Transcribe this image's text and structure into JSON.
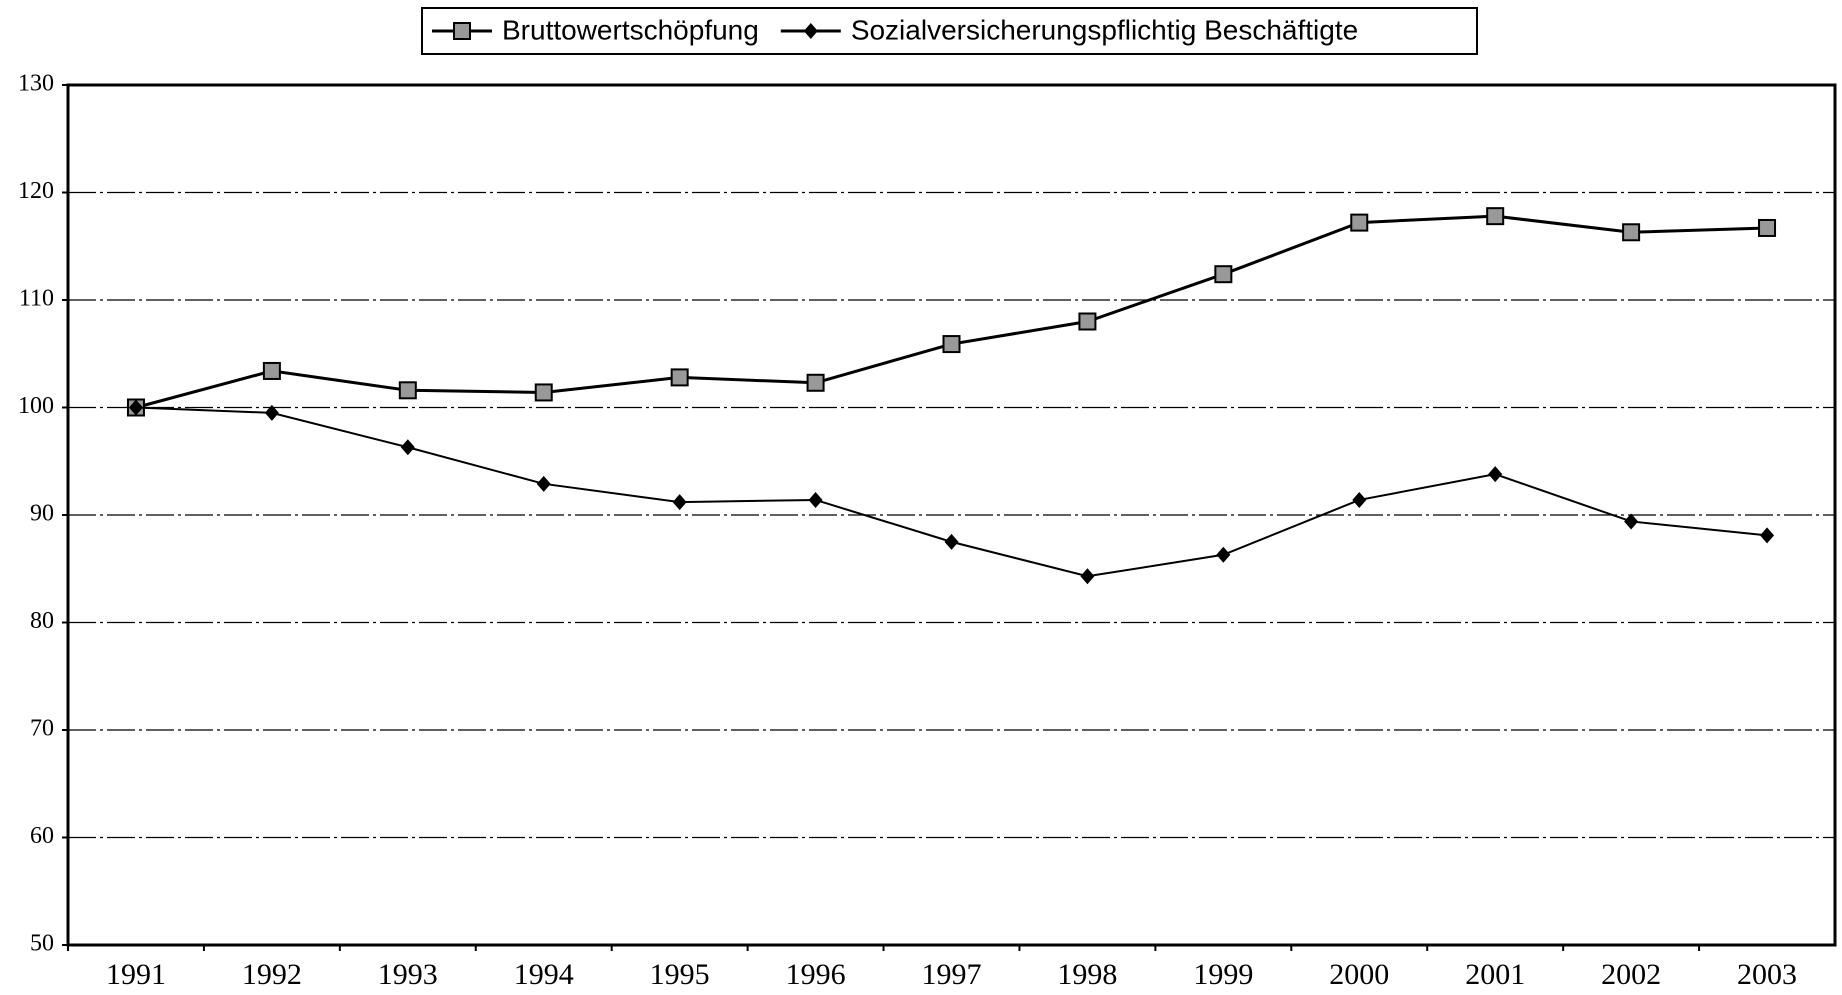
{
  "chart_data": {
    "type": "line",
    "categories": [
      "1991",
      "1992",
      "1993",
      "1994",
      "1995",
      "1996",
      "1997",
      "1998",
      "1999",
      "2000",
      "2001",
      "2002",
      "2003"
    ],
    "series": [
      {
        "name": "Bruttowertschöpfung",
        "color": "#000000",
        "marker": "square",
        "values": [
          100,
          103.4,
          101.6,
          101.4,
          102.8,
          102.3,
          105.9,
          108,
          112.4,
          117.2,
          117.8,
          116.3,
          116.7
        ]
      },
      {
        "name": "Sozialversicherungspflichtig Beschäftigte",
        "color": "#000000",
        "marker": "diamond",
        "values": [
          100,
          99.5,
          96.3,
          92.9,
          91.2,
          91.4,
          87.5,
          84.3,
          86.3,
          91.4,
          93.8,
          89.4,
          88.1
        ]
      }
    ],
    "ylim": [
      50,
      130
    ],
    "yticks": [
      50,
      60,
      70,
      80,
      90,
      100,
      110,
      120,
      130
    ],
    "grid": true,
    "legend": "top"
  }
}
